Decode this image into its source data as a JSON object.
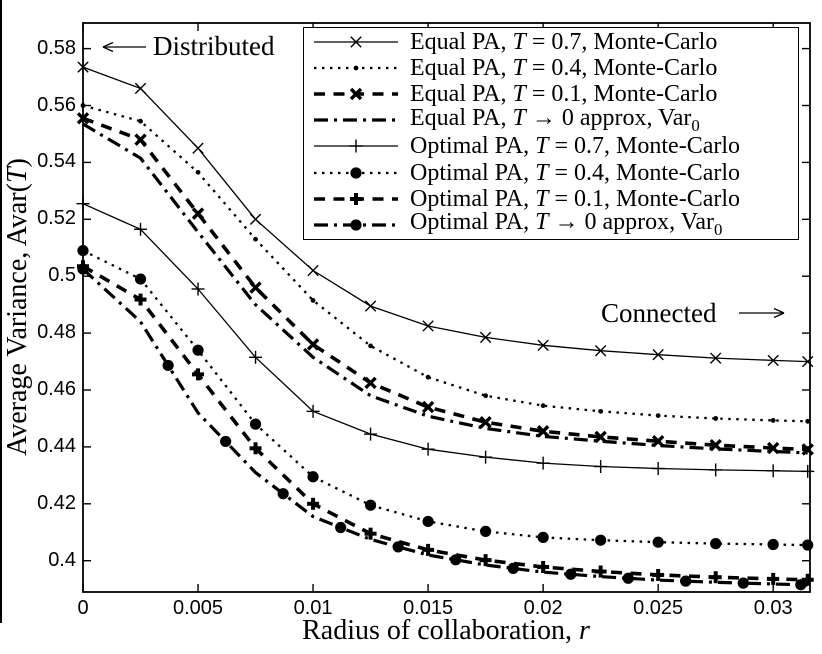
{
  "figure": {
    "background": "#ffffff",
    "ink_color": "#000000",
    "annotations": {
      "distributed": {
        "text": "Distributed",
        "arrow": "left"
      },
      "connected": {
        "text": "Connected",
        "arrow": "right"
      }
    }
  },
  "chart_data": {
    "type": "line",
    "title": "",
    "xlabel": "Radius of collaboration, r",
    "ylabel": "Average Variance, Avar(T)",
    "xlim": [
      0,
      0.0316
    ],
    "ylim": [
      0.389,
      0.589
    ],
    "grid": false,
    "legend_position": "upper-right",
    "x_ticks": {
      "labels": [
        "0",
        "0.005",
        "0.01",
        "0.015",
        "0.02",
        "0.025",
        "0.03"
      ],
      "values": [
        0,
        0.005,
        0.01,
        0.015,
        0.02,
        0.025,
        0.03
      ]
    },
    "y_ticks": {
      "labels": [
        "0.4",
        "0.42",
        "0.44",
        "0.46",
        "0.48",
        "0.5",
        "0.52",
        "0.54",
        "0.56",
        "0.58"
      ],
      "values": [
        0.4,
        0.42,
        0.44,
        0.46,
        0.48,
        0.5,
        0.52,
        0.54,
        0.56,
        0.58
      ]
    },
    "x": [
      0,
      0.0025,
      0.005,
      0.0075,
      0.01,
      0.0125,
      0.015,
      0.0175,
      0.02,
      0.0225,
      0.025,
      0.0275,
      0.03,
      0.0315
    ],
    "series": [
      {
        "name": "Equal PA, T = 0.7, Monte-Carlo",
        "line": "solid",
        "marker": "x",
        "width": 1.3,
        "marker_phase": 0,
        "values": [
          0.5735,
          0.566,
          0.545,
          0.52,
          0.502,
          0.4895,
          0.4825,
          0.4785,
          0.4757,
          0.4738,
          0.4724,
          0.4712,
          0.4704,
          0.47
        ]
      },
      {
        "name": "Equal PA, T = 0.4, Monte-Carlo",
        "line": "dotted",
        "marker": "dot",
        "width": 2.3,
        "marker_phase": 0,
        "values": [
          0.56,
          0.5545,
          0.5365,
          0.513,
          0.4915,
          0.4755,
          0.4645,
          0.458,
          0.4545,
          0.4525,
          0.451,
          0.45,
          0.4493,
          0.449
        ]
      },
      {
        "name": "Equal PA, T = 0.1, Monte-Carlo",
        "line": "dashed",
        "marker": "xbold",
        "width": 3.6,
        "marker_phase": 0,
        "values": [
          0.5555,
          0.548,
          0.522,
          0.496,
          0.476,
          0.4625,
          0.454,
          0.4487,
          0.4455,
          0.4435,
          0.442,
          0.4406,
          0.4396,
          0.4391
        ]
      },
      {
        "name": "Equal PA, T → 0 approx, Var_0",
        "line": "dashdot",
        "marker": "none",
        "width": 3.2,
        "marker_phase": 0,
        "values": [
          0.5535,
          0.5415,
          0.5155,
          0.49,
          0.4715,
          0.458,
          0.4508,
          0.4465,
          0.4437,
          0.442,
          0.4405,
          0.4393,
          0.4384,
          0.4379
        ]
      },
      {
        "name": "Optimal PA, T = 0.7, Monte-Carlo",
        "line": "solid",
        "marker": "plus",
        "width": 1.3,
        "marker_phase": 0,
        "values": [
          0.5255,
          0.5165,
          0.4955,
          0.4715,
          0.4525,
          0.4445,
          0.4392,
          0.4364,
          0.4343,
          0.4331,
          0.4324,
          0.4319,
          0.4316,
          0.4314
        ]
      },
      {
        "name": "Optimal PA, T = 0.4, Monte-Carlo",
        "line": "dotted",
        "marker": "circle",
        "width": 2.3,
        "marker_phase": 0,
        "values": [
          0.509,
          0.499,
          0.474,
          0.448,
          0.4295,
          0.4195,
          0.4138,
          0.4103,
          0.4082,
          0.4072,
          0.4065,
          0.406,
          0.4057,
          0.4055
        ]
      },
      {
        "name": "Optimal PA, T = 0.1, Monte-Carlo",
        "line": "dashed",
        "marker": "plusbold",
        "width": 3.6,
        "marker_phase": 0,
        "values": [
          0.5035,
          0.4918,
          0.4655,
          0.4395,
          0.42,
          0.4095,
          0.4038,
          0.4002,
          0.3978,
          0.3962,
          0.395,
          0.3942,
          0.3936,
          0.3933
        ]
      },
      {
        "name": "Optimal PA, T → 0 approx, Var_0",
        "line": "dashdot",
        "marker": "circle",
        "width": 3.2,
        "marker_phase": 0.0012,
        "values": [
          0.5025,
          0.484,
          0.452,
          0.431,
          0.4155,
          0.4075,
          0.402,
          0.3985,
          0.396,
          0.3944,
          0.3932,
          0.3924,
          0.3918,
          0.3915
        ]
      }
    ]
  }
}
